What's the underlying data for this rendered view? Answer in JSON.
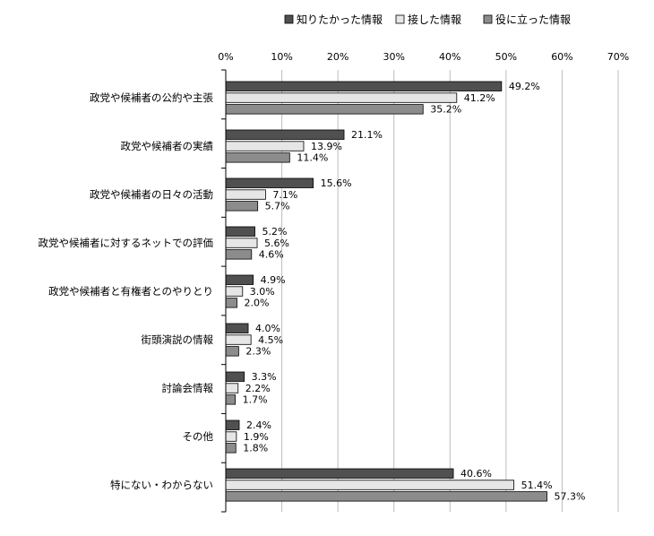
{
  "chart_data": {
    "type": "bar",
    "orientation": "horizontal",
    "title": "",
    "xlabel": "",
    "ylabel": "",
    "xlim": [
      0,
      70
    ],
    "x_ticks": [
      "0%",
      "10%",
      "20%",
      "30%",
      "40%",
      "50%",
      "60%",
      "70%"
    ],
    "grid": true,
    "legend_position": "top",
    "categories": [
      "政党や候補者の公約や主張",
      "政党や候補者の実績",
      "政党や候補者の日々の活動",
      "政党や候補者に対するネットでの評価",
      "政党や候補者と有権者とのやりとり",
      "街頭演説の情報",
      "討論会情報",
      "その他",
      "特にない・わからない"
    ],
    "series": [
      {
        "name": "知りたかった情報",
        "color": "#505050",
        "values": [
          49.2,
          21.1,
          15.6,
          5.2,
          4.9,
          4.0,
          3.3,
          2.4,
          40.6
        ],
        "labels": [
          "49.2%",
          "21.1%",
          "15.6%",
          "5.2%",
          "4.9%",
          "4.0%",
          "3.3%",
          "2.4%",
          "40.6%"
        ]
      },
      {
        "name": "接した情報",
        "color": "#e6e6e6",
        "values": [
          41.2,
          13.9,
          7.1,
          5.6,
          3.0,
          4.5,
          2.2,
          1.9,
          51.4
        ],
        "labels": [
          "41.2%",
          "13.9%",
          "7.1%",
          "5.6%",
          "3.0%",
          "4.5%",
          "2.2%",
          "1.9%",
          "51.4%"
        ]
      },
      {
        "name": "役に立った情報",
        "color": "#8c8c8c",
        "values": [
          35.2,
          11.4,
          5.7,
          4.6,
          2.0,
          2.3,
          1.7,
          1.8,
          57.3
        ],
        "labels": [
          "35.2%",
          "11.4%",
          "5.7%",
          "4.6%",
          "2.0%",
          "2.3%",
          "1.7%",
          "1.8%",
          "57.3%"
        ]
      }
    ]
  }
}
